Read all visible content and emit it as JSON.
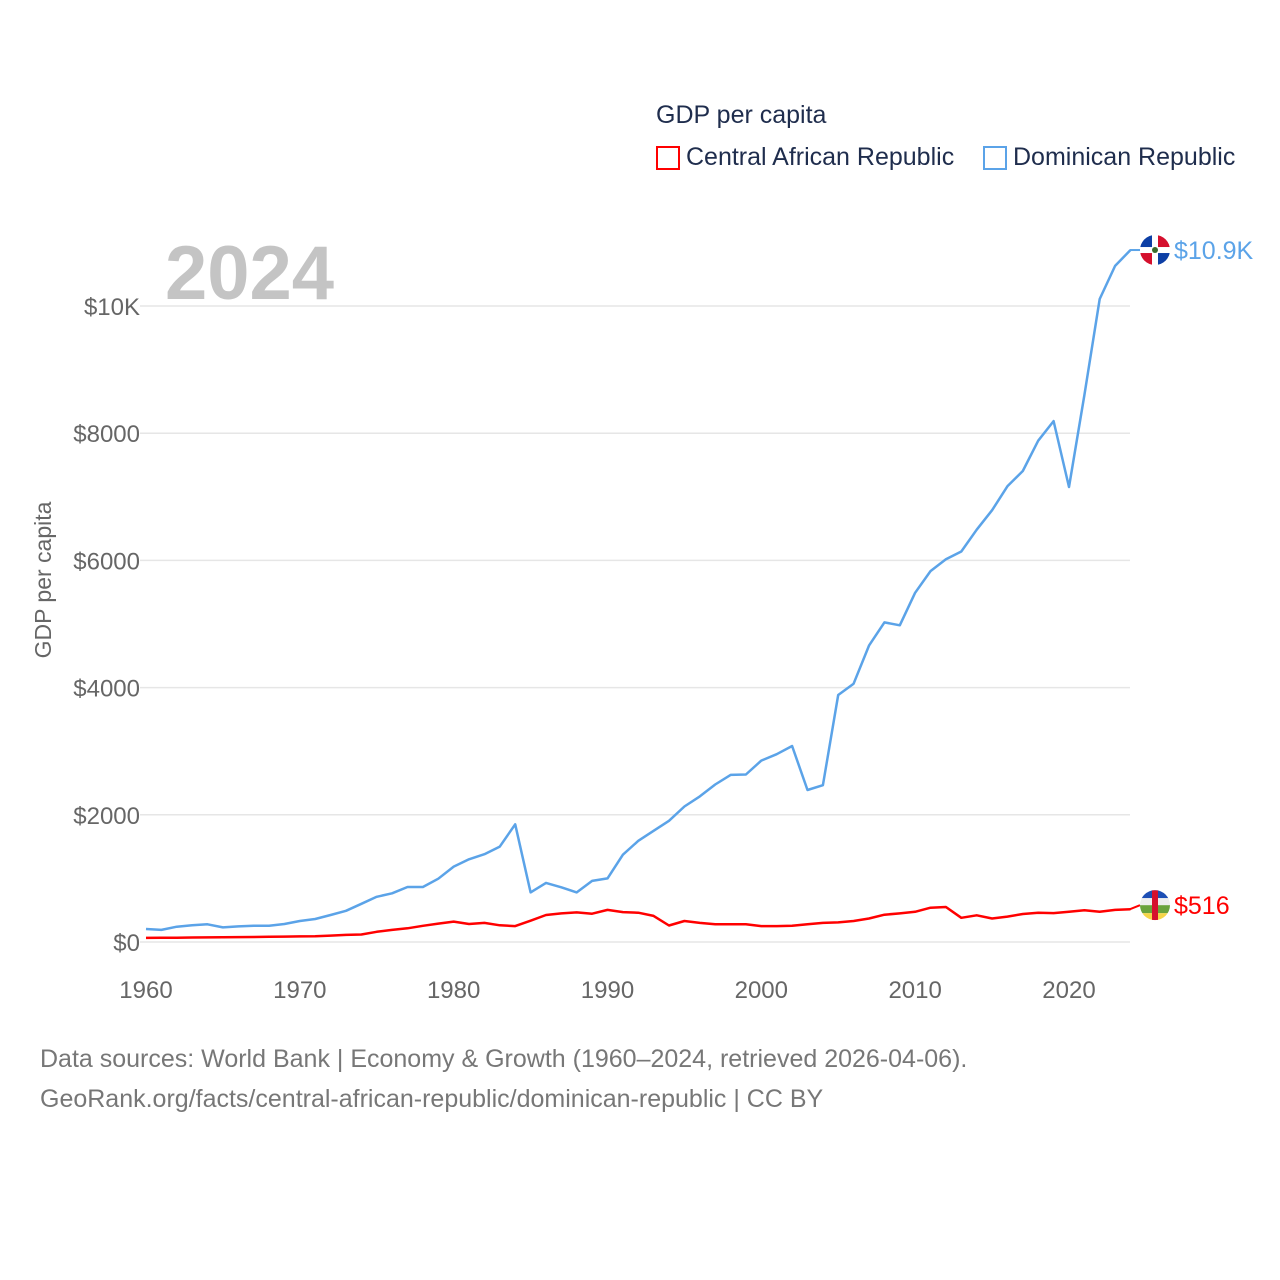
{
  "chart_data": {
    "type": "line",
    "title": "GDP per capita",
    "overlay_year": "2024",
    "ylabel": "GDP per capita",
    "xlabel": "",
    "xlim": [
      1960,
      2024
    ],
    "ylim": [
      0,
      11000
    ],
    "x_ticks": [
      1960,
      1970,
      1980,
      1990,
      2000,
      2010,
      2020
    ],
    "x_tick_labels": [
      "1960",
      "1970",
      "1980",
      "1990",
      "2000",
      "2010",
      "2020"
    ],
    "y_ticks": [
      0,
      2000,
      4000,
      6000,
      8000,
      10000
    ],
    "y_tick_labels": [
      "$0",
      "$2000",
      "$4000",
      "$6000",
      "$8000",
      "$10K"
    ],
    "grid": true,
    "legend_placement": "top-right",
    "series": [
      {
        "name": "Central African Republic",
        "color": "#ff0000",
        "end_label": "$516",
        "flag": "central-african-republic-flag-icon",
        "values": [
          65,
          67,
          68,
          70,
          72,
          75,
          77,
          78,
          82,
          85,
          88,
          90,
          100,
          112,
          118,
          160,
          190,
          215,
          255,
          290,
          320,
          283,
          300,
          262,
          250,
          335,
          425,
          450,
          465,
          445,
          505,
          470,
          460,
          410,
          260,
          330,
          300,
          280,
          280,
          280,
          250,
          250,
          255,
          280,
          300,
          308,
          330,
          370,
          430,
          450,
          475,
          540,
          550,
          380,
          420,
          370,
          400,
          440,
          460,
          455,
          475,
          500,
          475,
          505,
          516
        ]
      },
      {
        "name": "Dominican Republic",
        "color": "#5ba3e8",
        "end_label": "$10.9K",
        "flag": "dominican-republic-flag-icon",
        "values": [
          205,
          190,
          240,
          262,
          278,
          230,
          245,
          256,
          256,
          283,
          330,
          362,
          425,
          490,
          600,
          710,
          765,
          865,
          865,
          995,
          1185,
          1300,
          1380,
          1500,
          1850,
          780,
          930,
          860,
          780,
          960,
          1000,
          1373,
          1591,
          1748,
          1905,
          2130,
          2290,
          2476,
          2628,
          2633,
          2852,
          2953,
          3082,
          2390,
          2465,
          3883,
          4062,
          4661,
          5025,
          4980,
          5490,
          5832,
          6017,
          6140,
          6482,
          6790,
          7165,
          7406,
          7882,
          8190,
          7154,
          8600,
          10110,
          10630,
          10880
        ]
      }
    ]
  },
  "footer": {
    "line1": "Data sources: World Bank | Economy & Growth (1960–2024, retrieved 2026-04-06).",
    "line2": "GeoRank.org/facts/central-african-republic/dominican-republic | CC BY"
  }
}
